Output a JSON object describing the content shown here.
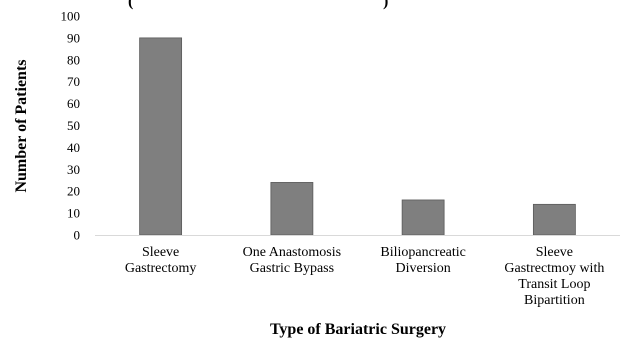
{
  "chart_data": {
    "type": "bar",
    "header_fragment": "(",
    "header_fragment_close": ")",
    "categories": [
      [
        "Sleeve",
        "Gastrectomy"
      ],
      [
        "One Anastomosis",
        "Gastric Bypass"
      ],
      [
        "Biliopancreatic",
        "Diversion"
      ],
      [
        "Sleeve",
        "Gastrectmoy with",
        "Transit Loop",
        "Bipartition"
      ]
    ],
    "values": [
      90,
      24,
      16,
      14
    ],
    "xlabel": "Type of Bariatric Surgery",
    "ylabel": "Number of Patients",
    "ylim": [
      0,
      100
    ],
    "yticks": [
      "0",
      "10",
      "20",
      "30",
      "40",
      "50",
      "60",
      "70",
      "80",
      "90",
      "100"
    ],
    "grid": false,
    "legend": "none",
    "bar_color": "#7f7f7f",
    "bar_edge_color": "#5a5a5a",
    "axis_color": "#d9d9d9"
  }
}
